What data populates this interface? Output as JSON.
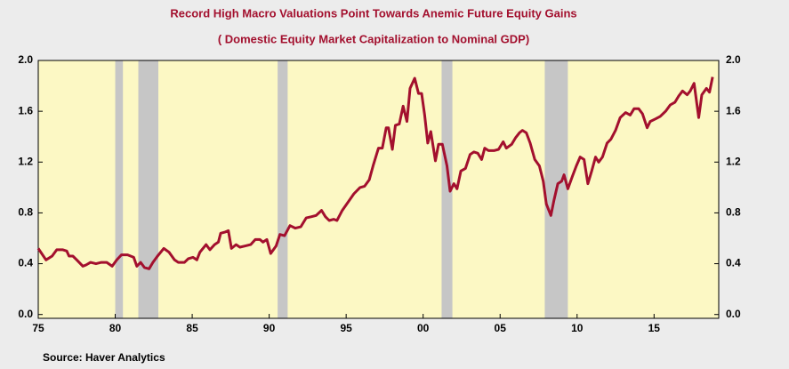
{
  "chart_data": {
    "type": "line",
    "title": "Record High Macro Valuations Point Towards Anemic Future Equity Gains",
    "subtitle": "( Domestic Equity Market Capitalization to Nominal GDP)",
    "source": "Source:  Haver Analytics",
    "xlim": [
      1975,
      2019.2
    ],
    "ylim": [
      -0.03,
      2.0
    ],
    "xticks": [
      {
        "value": 1975,
        "label": "75"
      },
      {
        "value": 1980,
        "label": "80"
      },
      {
        "value": 1985,
        "label": "85"
      },
      {
        "value": 1990,
        "label": "90"
      },
      {
        "value": 1995,
        "label": "95"
      },
      {
        "value": 2000,
        "label": "00"
      },
      {
        "value": 2005,
        "label": "05"
      },
      {
        "value": 2010,
        "label": "10"
      },
      {
        "value": 2015,
        "label": "15"
      }
    ],
    "yticks": [
      {
        "value": 0,
        "label": "0.0"
      },
      {
        "value": 0.4,
        "label": "0.4"
      },
      {
        "value": 0.8,
        "label": "0.8"
      },
      {
        "value": 1.2,
        "label": "1.2"
      },
      {
        "value": 1.6,
        "label": "1.6"
      },
      {
        "value": 2.0,
        "label": "2.0"
      }
    ],
    "recessions": [
      [
        1980.0,
        1980.5
      ],
      [
        1981.5,
        1982.8
      ],
      [
        1990.55,
        1991.2
      ],
      [
        2001.2,
        2001.9
      ],
      [
        2007.9,
        2009.4
      ]
    ],
    "recession_color": "#c6c6c6",
    "background": "#fcf8c4",
    "series": [
      {
        "color": "#a3102e",
        "x": [
          1975.0,
          1975.5,
          1975.9,
          1976.2,
          1976.6,
          1976.85,
          1977.0,
          1977.25,
          1977.5,
          1977.9,
          1978.1,
          1978.4,
          1978.75,
          1979.1,
          1979.45,
          1979.8,
          1980.1,
          1980.4,
          1980.8,
          1981.2,
          1981.4,
          1981.65,
          1981.9,
          1982.2,
          1982.45,
          1982.75,
          1983.15,
          1983.5,
          1983.85,
          1984.1,
          1984.5,
          1984.75,
          1985.05,
          1985.3,
          1985.5,
          1985.9,
          1986.15,
          1986.45,
          1986.7,
          1986.85,
          1987.15,
          1987.35,
          1987.55,
          1987.85,
          1988.1,
          1988.45,
          1988.8,
          1989.1,
          1989.4,
          1989.6,
          1989.85,
          1990.1,
          1990.45,
          1990.7,
          1991.0,
          1991.35,
          1991.7,
          1992.05,
          1992.4,
          1992.75,
          1993.05,
          1993.4,
          1993.65,
          1993.9,
          1994.2,
          1994.4,
          1994.75,
          1995.15,
          1995.5,
          1995.9,
          1996.2,
          1996.5,
          1996.75,
          1997.1,
          1997.35,
          1997.6,
          1997.75,
          1998.0,
          1998.2,
          1998.45,
          1998.7,
          1998.95,
          1999.15,
          1999.45,
          1999.7,
          1999.9,
          2000.1,
          2000.3,
          2000.5,
          2000.8,
          2001.0,
          2001.25,
          2001.55,
          2001.75,
          2002.0,
          2002.2,
          2002.45,
          2002.75,
          2003.05,
          2003.3,
          2003.55,
          2003.8,
          2004.0,
          2004.25,
          2004.6,
          2004.9,
          2005.2,
          2005.4,
          2005.75,
          2006.0,
          2006.25,
          2006.45,
          2006.7,
          2006.95,
          2007.25,
          2007.55,
          2007.8,
          2008.0,
          2008.3,
          2008.5,
          2008.75,
          2009.0,
          2009.15,
          2009.4,
          2009.7,
          2009.95,
          2010.2,
          2010.45,
          2010.7,
          2010.95,
          2011.2,
          2011.4,
          2011.65,
          2011.95,
          2012.2,
          2012.5,
          2012.8,
          2013.15,
          2013.45,
          2013.7,
          2014.0,
          2014.25,
          2014.55,
          2014.75,
          2015.1,
          2015.4,
          2015.75,
          2016.05,
          2016.35,
          2016.6,
          2016.85,
          2017.15,
          2017.35,
          2017.6,
          2017.9,
          2018.1,
          2018.4,
          2018.6,
          2018.8
        ],
        "values": [
          0.52,
          0.43,
          0.46,
          0.51,
          0.51,
          0.5,
          0.46,
          0.46,
          0.43,
          0.38,
          0.39,
          0.41,
          0.4,
          0.41,
          0.41,
          0.38,
          0.43,
          0.47,
          0.47,
          0.45,
          0.38,
          0.41,
          0.37,
          0.36,
          0.41,
          0.46,
          0.52,
          0.49,
          0.43,
          0.41,
          0.41,
          0.44,
          0.45,
          0.43,
          0.49,
          0.55,
          0.51,
          0.55,
          0.57,
          0.64,
          0.65,
          0.66,
          0.52,
          0.55,
          0.53,
          0.54,
          0.55,
          0.59,
          0.59,
          0.57,
          0.59,
          0.48,
          0.54,
          0.63,
          0.62,
          0.7,
          0.68,
          0.69,
          0.76,
          0.77,
          0.78,
          0.82,
          0.77,
          0.74,
          0.75,
          0.74,
          0.82,
          0.89,
          0.95,
          1.0,
          1.01,
          1.06,
          1.17,
          1.31,
          1.31,
          1.47,
          1.47,
          1.3,
          1.49,
          1.5,
          1.64,
          1.52,
          1.78,
          1.86,
          1.74,
          1.74,
          1.57,
          1.35,
          1.44,
          1.21,
          1.34,
          1.34,
          1.17,
          0.97,
          1.03,
          0.99,
          1.13,
          1.15,
          1.26,
          1.28,
          1.27,
          1.22,
          1.31,
          1.29,
          1.29,
          1.3,
          1.36,
          1.31,
          1.34,
          1.39,
          1.43,
          1.45,
          1.43,
          1.35,
          1.22,
          1.17,
          1.05,
          0.87,
          0.78,
          0.9,
          1.03,
          1.05,
          1.1,
          0.99,
          1.09,
          1.17,
          1.24,
          1.22,
          1.03,
          1.13,
          1.24,
          1.2,
          1.24,
          1.35,
          1.38,
          1.45,
          1.55,
          1.59,
          1.57,
          1.62,
          1.62,
          1.58,
          1.47,
          1.52,
          1.54,
          1.56,
          1.6,
          1.65,
          1.67,
          1.72,
          1.76,
          1.73,
          1.76,
          1.82,
          1.55,
          1.73,
          1.78,
          1.75,
          1.87
        ]
      }
    ]
  }
}
